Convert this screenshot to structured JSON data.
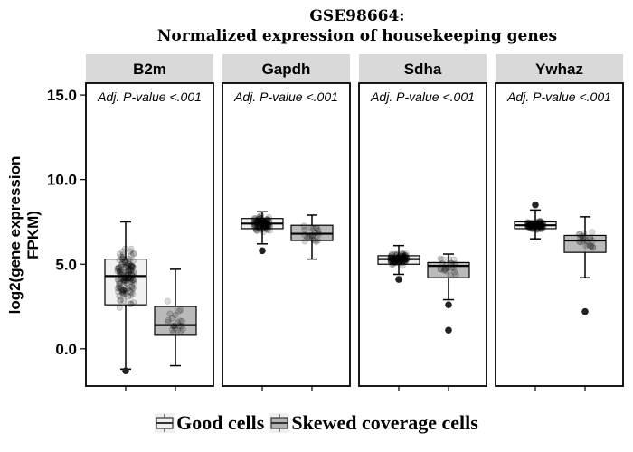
{
  "chart_data": {
    "type": "boxplot",
    "title": "GSE98664:",
    "subtitle": "Normalized expression of housekeeping genes",
    "ylabel_line1": "log2(gene expression",
    "ylabel_line2": "FPKM)",
    "xlabel": "",
    "ylim": [
      -2.2,
      15.7
    ],
    "y_ticks": [
      0.0,
      5.0,
      10.0,
      15.0
    ],
    "y_tick_labels": [
      "0.0",
      "5.0",
      "10.0",
      "15.0"
    ],
    "grid": false,
    "legend_position": "bottom",
    "groups": [
      {
        "name": "Good cells",
        "fill": "#f0f0f0"
      },
      {
        "name": "Skewed coverage cells",
        "fill": "#b3b3b3"
      }
    ],
    "panels": [
      {
        "gene": "B2m",
        "annotation": "Adj. P-value <.001",
        "boxes": [
          {
            "group": "Good cells",
            "whisker_low": -1.2,
            "q1": 2.6,
            "median": 4.3,
            "q3": 5.3,
            "whisker_high": 7.5,
            "outliers": [
              -1.3
            ]
          },
          {
            "group": "Skewed coverage cells",
            "whisker_low": -1.0,
            "q1": 0.8,
            "median": 1.4,
            "q3": 2.5,
            "whisker_high": 4.7,
            "outliers": []
          }
        ]
      },
      {
        "gene": "Gapdh",
        "annotation": "Adj. P-value <.001",
        "boxes": [
          {
            "group": "Good cells",
            "whisker_low": 6.2,
            "q1": 7.1,
            "median": 7.4,
            "q3": 7.7,
            "whisker_high": 8.1,
            "outliers": [
              5.8
            ]
          },
          {
            "group": "Skewed coverage cells",
            "whisker_low": 5.3,
            "q1": 6.4,
            "median": 6.8,
            "q3": 7.3,
            "whisker_high": 7.9,
            "outliers": []
          }
        ]
      },
      {
        "gene": "Sdha",
        "annotation": "Adj. P-value <.001",
        "boxes": [
          {
            "group": "Good cells",
            "whisker_low": 4.4,
            "q1": 5.0,
            "median": 5.3,
            "q3": 5.5,
            "whisker_high": 6.1,
            "outliers": [
              4.1
            ]
          },
          {
            "group": "Skewed coverage cells",
            "whisker_low": 2.9,
            "q1": 4.2,
            "median": 4.9,
            "q3": 5.1,
            "whisker_high": 5.6,
            "outliers": [
              2.6,
              1.1
            ]
          }
        ]
      },
      {
        "gene": "Ywhaz",
        "annotation": "Adj. P-value <.001",
        "boxes": [
          {
            "group": "Good cells",
            "whisker_low": 6.5,
            "q1": 7.1,
            "median": 7.3,
            "q3": 7.5,
            "whisker_high": 8.2,
            "outliers": [
              8.5
            ]
          },
          {
            "group": "Skewed coverage cells",
            "whisker_low": 4.2,
            "q1": 5.7,
            "median": 6.4,
            "q3": 6.7,
            "whisker_high": 7.8,
            "outliers": [
              2.2
            ]
          }
        ]
      }
    ]
  }
}
